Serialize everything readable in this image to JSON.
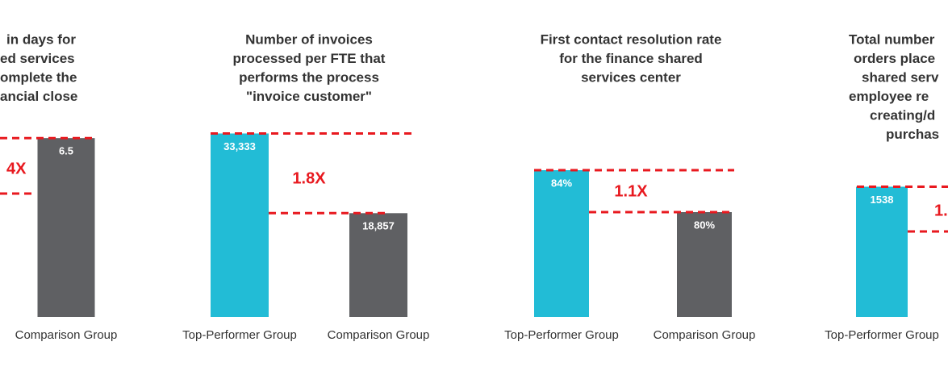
{
  "chart_data": [
    {
      "type": "bar",
      "title_lines": [
        "in days for",
        "ed services",
        "omplete the",
        "ancial close"
      ],
      "categories": [
        "Comparison Group"
      ],
      "values": [
        6.5
      ],
      "colors": [
        "#5f6063"
      ],
      "ratio_label": "4X",
      "ylim": [
        0,
        8
      ]
    },
    {
      "type": "bar",
      "title_lines": [
        "Number of invoices",
        "processed per FTE that",
        "performs the process",
        "\"invoice customer\""
      ],
      "categories": [
        "Top-Performer Group",
        "Comparison Group"
      ],
      "values": [
        33333,
        18857
      ],
      "value_labels": [
        "33,333",
        "18,857"
      ],
      "colors": [
        "#22bcd6",
        "#5f6063"
      ],
      "ratio_label": "1.8X",
      "ylim": [
        0,
        40000
      ]
    },
    {
      "type": "bar",
      "title_lines": [
        "First contact resolution rate",
        "for the finance shared",
        "services center"
      ],
      "categories": [
        "Top-Performer Group",
        "Comparison Group"
      ],
      "values": [
        84,
        80
      ],
      "value_labels": [
        "84%",
        "80%"
      ],
      "colors": [
        "#22bcd6",
        "#5f6063"
      ],
      "ratio_label": "1.1X",
      "ylim": [
        70,
        91
      ]
    },
    {
      "type": "bar",
      "title_lines": [
        "Total number",
        "orders place",
        "shared serv",
        "employee re",
        "creating/d",
        "purchas"
      ],
      "categories": [
        "Top-Performer Group"
      ],
      "values": [
        1538
      ],
      "colors": [
        "#22bcd6"
      ],
      "ratio_label": "1.",
      "ylim": [
        0,
        2600
      ]
    }
  ]
}
